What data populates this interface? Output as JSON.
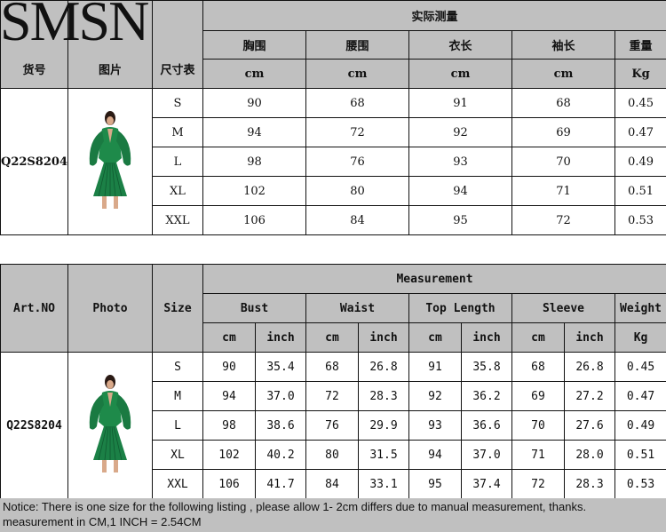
{
  "logo": "SMSN",
  "cn": {
    "headers": {
      "art": "货号",
      "photo": "图片",
      "size": "尺寸表",
      "measure": "实际测量",
      "cols": [
        "胸围",
        "腰围",
        "衣长",
        "袖长",
        "重量"
      ],
      "units": [
        "cm",
        "cm",
        "cm",
        "cm",
        "Kg"
      ]
    },
    "art_no": "Q22S8204",
    "rows": [
      [
        "S",
        "90",
        "68",
        "91",
        "68",
        "0.45"
      ],
      [
        "M",
        "94",
        "72",
        "92",
        "69",
        "0.47"
      ],
      [
        "L",
        "98",
        "76",
        "93",
        "70",
        "0.49"
      ],
      [
        "XL",
        "102",
        "80",
        "94",
        "71",
        "0.51"
      ],
      [
        "XXL",
        "106",
        "84",
        "95",
        "72",
        "0.53"
      ]
    ]
  },
  "en": {
    "headers": {
      "art": "Art.NO",
      "photo": "Photo",
      "size": "Size",
      "measure": "Measurement",
      "cols": [
        "Bust",
        "Waist",
        "Top Length",
        "Sleeve",
        "Weight"
      ],
      "units": [
        "cm",
        "inch",
        "cm",
        "inch",
        "cm",
        "inch",
        "cm",
        "inch",
        "Kg"
      ]
    },
    "art_no": "Q22S8204",
    "rows": [
      [
        "S",
        "90",
        "35.4",
        "68",
        "26.8",
        "91",
        "35.8",
        "68",
        "26.8",
        "0.45"
      ],
      [
        "M",
        "94",
        "37.0",
        "72",
        "28.3",
        "92",
        "36.2",
        "69",
        "27.2",
        "0.47"
      ],
      [
        "L",
        "98",
        "38.6",
        "76",
        "29.9",
        "93",
        "36.6",
        "70",
        "27.6",
        "0.49"
      ],
      [
        "XL",
        "102",
        "40.2",
        "80",
        "31.5",
        "94",
        "37.0",
        "71",
        "28.0",
        "0.51"
      ],
      [
        "XXL",
        "106",
        "41.7",
        "84",
        "33.1",
        "95",
        "37.4",
        "72",
        "28.3",
        "0.53"
      ]
    ]
  },
  "notice": {
    "line1": "Notice: There is one size for the following listing , please allow 1- 2cm differs due to manual measurement, thanks.",
    "line2": "measurement in CM,1 INCH = 2.54CM"
  },
  "colors": {
    "header_bg": "#c0c0c0",
    "dress": "#1e8a4a"
  }
}
